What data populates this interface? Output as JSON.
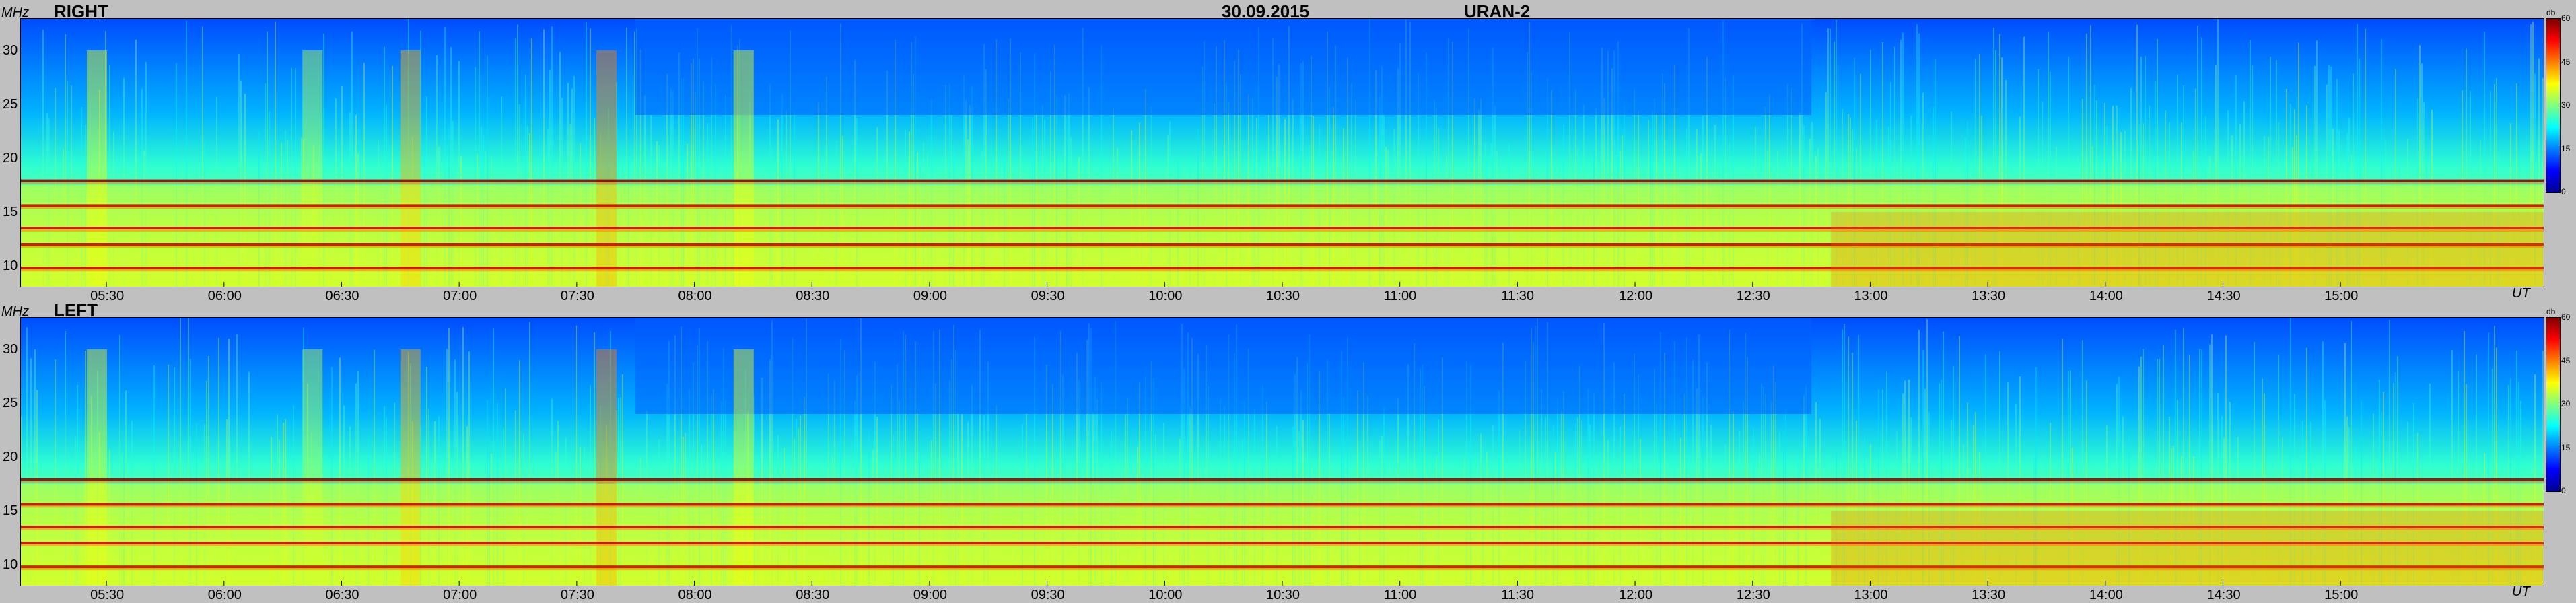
{
  "header": {
    "date": "30.09.2015",
    "instrument": "URAN-2"
  },
  "panels": [
    {
      "label": "RIGHT",
      "y_unit": "MHz",
      "x_unit": "UT",
      "cbar_unit": "db"
    },
    {
      "label": "LEFT",
      "y_unit": "MHz",
      "x_unit": "UT",
      "cbar_unit": "db"
    }
  ],
  "chart_data": [
    {
      "type": "heatmap",
      "title": "RIGHT",
      "ylabel": "MHz",
      "xlabel": "UT",
      "ylim": [
        8,
        33
      ],
      "xlim": [
        "05:08",
        "15:52"
      ],
      "x_ticks": [
        "05:30",
        "06:00",
        "06:30",
        "07:00",
        "07:30",
        "08:00",
        "08:30",
        "09:00",
        "09:30",
        "10:00",
        "10:30",
        "11:00",
        "11:30",
        "12:00",
        "12:30",
        "13:00",
        "13:30",
        "14:00",
        "14:30",
        "15:00"
      ],
      "y_ticks": [
        10,
        15,
        20,
        25,
        30
      ],
      "colorbar": {
        "unit": "db",
        "range": [
          0,
          60
        ],
        "ticks": [
          0,
          15,
          30,
          45,
          60
        ]
      },
      "interference_bands_mhz": [
        17.9,
        15.6,
        13.5,
        12.0,
        9.8
      ]
    },
    {
      "type": "heatmap",
      "title": "LEFT",
      "ylabel": "MHz",
      "xlabel": "UT",
      "ylim": [
        8,
        33
      ],
      "xlim": [
        "05:08",
        "15:52"
      ],
      "x_ticks": [
        "05:30",
        "06:00",
        "06:30",
        "07:00",
        "07:30",
        "08:00",
        "08:30",
        "09:00",
        "09:30",
        "10:00",
        "10:30",
        "11:00",
        "11:30",
        "12:00",
        "12:30",
        "13:00",
        "13:30",
        "14:00",
        "14:30",
        "15:00"
      ],
      "y_ticks": [
        10,
        15,
        20,
        25,
        30
      ],
      "colorbar": {
        "unit": "db",
        "range": [
          0,
          60
        ],
        "ticks": [
          0,
          15,
          30,
          45,
          60
        ]
      },
      "interference_bands_mhz": [
        17.9,
        15.6,
        13.5,
        12.0,
        9.8
      ]
    }
  ]
}
